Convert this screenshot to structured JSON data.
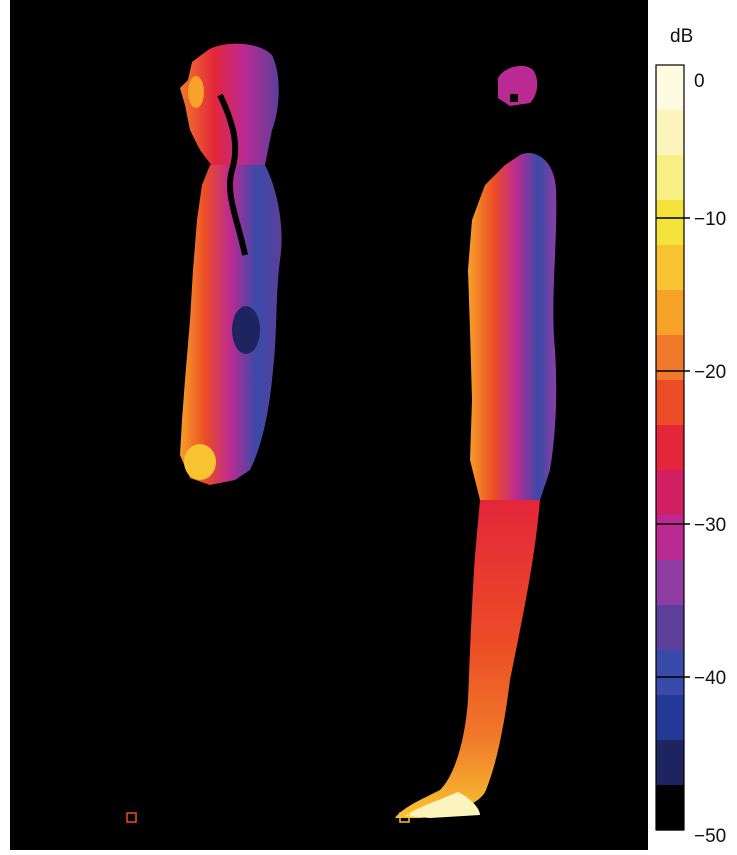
{
  "chart_data": {
    "type": "heatmap",
    "colorbar": {
      "unit": "dB",
      "min": -50,
      "max": 0,
      "ticks": [
        0,
        -10,
        -20,
        -30,
        -40,
        -50
      ],
      "tick_labels": [
        "0",
        "−10",
        "−20",
        "−30",
        "−40",
        "−50"
      ],
      "band_colors": [
        "#fdfbe0",
        "#fbf4bd",
        "#f8ef85",
        "#f3e33a",
        "#f8c330",
        "#f6a128",
        "#f07a2a",
        "#ec4c26",
        "#e3263a",
        "#d11f62",
        "#bb2a93",
        "#8f3da2",
        "#5b3f9b",
        "#3a4aa8",
        "#243896",
        "#1d2460",
        "#000000"
      ]
    },
    "panels": [
      {
        "name": "upper body, side view"
      },
      {
        "name": "full body, side view"
      }
    ],
    "markers": [
      "small square at base of left panel",
      "small square at foot of right panel"
    ]
  }
}
